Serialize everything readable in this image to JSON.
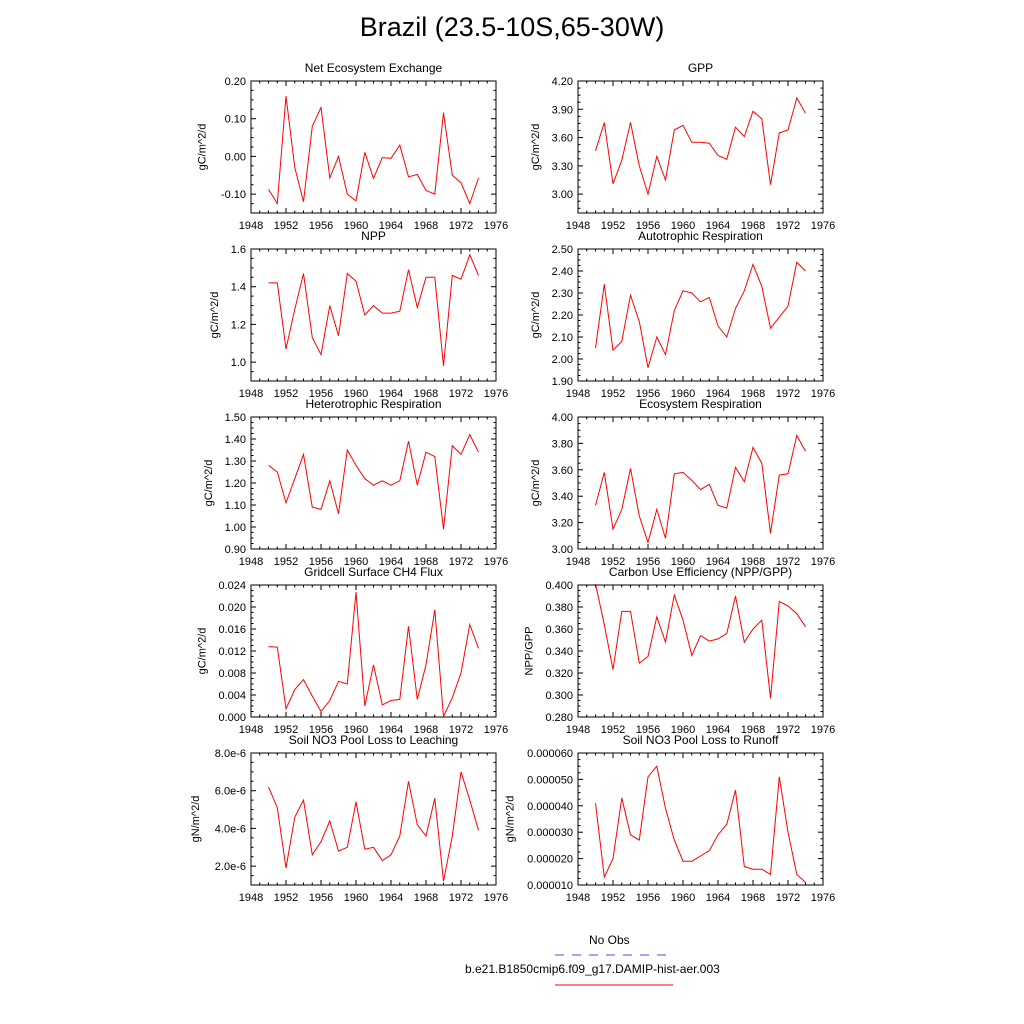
{
  "page": {
    "title": "Brazil (23.5-10S,65-30W)",
    "legend": [
      {
        "label": "No Obs",
        "color": "#4a4aff",
        "dash": true
      },
      {
        "label": "b.e21.B1850cmip6.f09_g17.DAMIP-hist-aer.003",
        "color": "#ff0000",
        "dash": false
      }
    ]
  },
  "chart_data": [
    {
      "type": "line",
      "title": "Net Ecosystem Exchange",
      "ylabel": "gC/m^2/d",
      "xlim": [
        1948,
        1976
      ],
      "xticks": [
        "1948",
        "1952",
        "1956",
        "1960",
        "1964",
        "1968",
        "1972",
        "1976"
      ],
      "ylim": [
        -0.15,
        0.2
      ],
      "yticks": [
        "-0.10",
        "0.00",
        "0.10",
        "0.20"
      ],
      "yticks_values": [
        -0.1,
        0.0,
        0.1,
        0.2
      ],
      "series": [
        {
          "color": "#ff0000",
          "x": [
            1950,
            1951,
            1952,
            1953,
            1954,
            1955,
            1956,
            1957,
            1958,
            1959,
            1960,
            1961,
            1962,
            1963,
            1964,
            1965,
            1966,
            1967,
            1968,
            1969,
            1970,
            1971,
            1972,
            1973,
            1974
          ],
          "y": [
            -0.087,
            -0.125,
            0.16,
            -0.03,
            -0.12,
            0.08,
            0.13,
            -0.057,
            0.0,
            -0.1,
            -0.118,
            0.011,
            -0.058,
            -0.003,
            -0.005,
            0.03,
            -0.054,
            -0.048,
            -0.09,
            -0.1,
            0.116,
            -0.05,
            -0.07,
            -0.125,
            -0.057
          ]
        }
      ]
    },
    {
      "type": "line",
      "title": "GPP",
      "ylabel": "gC/m^2/d",
      "xlim": [
        1948,
        1976
      ],
      "xticks": [
        "1948",
        "1952",
        "1956",
        "1960",
        "1964",
        "1968",
        "1972",
        "1976"
      ],
      "ylim": [
        2.8,
        4.2
      ],
      "yticks": [
        "3.00",
        "3.30",
        "3.60",
        "3.90",
        "4.20"
      ],
      "yticks_values": [
        3.0,
        3.3,
        3.6,
        3.9,
        4.2
      ],
      "series": [
        {
          "color": "#ff0000",
          "x": [
            1950,
            1951,
            1952,
            1953,
            1954,
            1955,
            1956,
            1957,
            1958,
            1959,
            1960,
            1961,
            1962,
            1963,
            1964,
            1965,
            1966,
            1967,
            1968,
            1969,
            1970,
            1971,
            1972,
            1973,
            1974
          ],
          "y": [
            3.46,
            3.76,
            3.11,
            3.36,
            3.76,
            3.3,
            3.0,
            3.4,
            3.15,
            3.68,
            3.73,
            3.55,
            3.55,
            3.54,
            3.41,
            3.37,
            3.71,
            3.61,
            3.88,
            3.8,
            3.1,
            3.65,
            3.68,
            4.02,
            3.86
          ]
        }
      ]
    },
    {
      "type": "line",
      "title": "NPP",
      "ylabel": "gC/m^2/d",
      "xlim": [
        1948,
        1976
      ],
      "xticks": [
        "1948",
        "1952",
        "1956",
        "1960",
        "1964",
        "1968",
        "1972",
        "1976"
      ],
      "ylim": [
        0.9,
        1.6
      ],
      "yticks": [
        "1.0",
        "1.2",
        "1.4",
        "1.6"
      ],
      "yticks_values": [
        1.0,
        1.2,
        1.4,
        1.6
      ],
      "series": [
        {
          "color": "#ff0000",
          "x": [
            1950,
            1951,
            1952,
            1953,
            1954,
            1955,
            1956,
            1957,
            1958,
            1959,
            1960,
            1961,
            1962,
            1963,
            1964,
            1965,
            1966,
            1967,
            1968,
            1969,
            1970,
            1971,
            1972,
            1973,
            1974
          ],
          "y": [
            1.42,
            1.42,
            1.07,
            1.28,
            1.47,
            1.13,
            1.04,
            1.3,
            1.14,
            1.47,
            1.43,
            1.25,
            1.3,
            1.26,
            1.26,
            1.27,
            1.49,
            1.29,
            1.45,
            1.45,
            0.98,
            1.46,
            1.44,
            1.57,
            1.46
          ]
        }
      ]
    },
    {
      "type": "line",
      "title": "Autotrophic Respiration",
      "ylabel": "gC/m^2/d",
      "xlim": [
        1948,
        1976
      ],
      "xticks": [
        "1948",
        "1952",
        "1956",
        "1960",
        "1964",
        "1968",
        "1972",
        "1976"
      ],
      "ylim": [
        1.9,
        2.5
      ],
      "yticks": [
        "1.90",
        "2.00",
        "2.10",
        "2.20",
        "2.30",
        "2.40",
        "2.50"
      ],
      "yticks_values": [
        1.9,
        2.0,
        2.1,
        2.2,
        2.3,
        2.4,
        2.5
      ],
      "series": [
        {
          "color": "#ff0000",
          "x": [
            1950,
            1951,
            1952,
            1953,
            1954,
            1955,
            1956,
            1957,
            1958,
            1959,
            1960,
            1961,
            1962,
            1963,
            1964,
            1965,
            1966,
            1967,
            1968,
            1969,
            1970,
            1971,
            1972,
            1973,
            1974
          ],
          "y": [
            2.05,
            2.34,
            2.04,
            2.08,
            2.29,
            2.17,
            1.96,
            2.1,
            2.02,
            2.22,
            2.31,
            2.3,
            2.26,
            2.28,
            2.15,
            2.1,
            2.23,
            2.31,
            2.43,
            2.33,
            2.14,
            2.19,
            2.24,
            2.44,
            2.4
          ]
        }
      ]
    },
    {
      "type": "line",
      "title": "Heterotrophic Respiration",
      "ylabel": "gC/m^2/d",
      "xlim": [
        1948,
        1976
      ],
      "xticks": [
        "1948",
        "1952",
        "1956",
        "1960",
        "1964",
        "1968",
        "1972",
        "1976"
      ],
      "ylim": [
        0.9,
        1.5
      ],
      "yticks": [
        "0.90",
        "1.00",
        "1.10",
        "1.20",
        "1.30",
        "1.40",
        "1.50"
      ],
      "yticks_values": [
        0.9,
        1.0,
        1.1,
        1.2,
        1.3,
        1.4,
        1.5
      ],
      "series": [
        {
          "color": "#ff0000",
          "x": [
            1950,
            1951,
            1952,
            1953,
            1954,
            1955,
            1956,
            1957,
            1958,
            1959,
            1960,
            1961,
            1962,
            1963,
            1964,
            1965,
            1966,
            1967,
            1968,
            1969,
            1970,
            1971,
            1972,
            1973,
            1974
          ],
          "y": [
            1.28,
            1.25,
            1.11,
            1.22,
            1.33,
            1.09,
            1.08,
            1.21,
            1.06,
            1.35,
            1.28,
            1.22,
            1.19,
            1.21,
            1.19,
            1.21,
            1.39,
            1.19,
            1.34,
            1.32,
            0.99,
            1.37,
            1.33,
            1.42,
            1.34
          ]
        }
      ]
    },
    {
      "type": "line",
      "title": "Ecosystem Respiration",
      "ylabel": "gC/m^2/d",
      "xlim": [
        1948,
        1976
      ],
      "xticks": [
        "1948",
        "1952",
        "1956",
        "1960",
        "1964",
        "1968",
        "1972",
        "1976"
      ],
      "ylim": [
        3.0,
        4.0
      ],
      "yticks": [
        "3.00",
        "3.20",
        "3.40",
        "3.60",
        "3.80",
        "4.00"
      ],
      "yticks_values": [
        3.0,
        3.2,
        3.4,
        3.6,
        3.8,
        4.0
      ],
      "series": [
        {
          "color": "#ff0000",
          "x": [
            1950,
            1951,
            1952,
            1953,
            1954,
            1955,
            1956,
            1957,
            1958,
            1959,
            1960,
            1961,
            1962,
            1963,
            1964,
            1965,
            1966,
            1967,
            1968,
            1969,
            1970,
            1971,
            1972,
            1973,
            1974
          ],
          "y": [
            3.33,
            3.58,
            3.15,
            3.3,
            3.61,
            3.25,
            3.05,
            3.3,
            3.08,
            3.57,
            3.58,
            3.52,
            3.45,
            3.49,
            3.33,
            3.31,
            3.62,
            3.51,
            3.77,
            3.65,
            3.12,
            3.56,
            3.57,
            3.86,
            3.74
          ]
        }
      ]
    },
    {
      "type": "line",
      "title": "Gridcell Surface CH4 Flux",
      "ylabel": "gC/m^2/d",
      "xlim": [
        1948,
        1976
      ],
      "xticks": [
        "1948",
        "1952",
        "1956",
        "1960",
        "1964",
        "1968",
        "1972",
        "1976"
      ],
      "ylim": [
        0.0,
        0.024
      ],
      "yticks": [
        "0.000",
        "0.004",
        "0.008",
        "0.012",
        "0.016",
        "0.020",
        "0.024"
      ],
      "yticks_values": [
        0.0,
        0.004,
        0.008,
        0.012,
        0.016,
        0.02,
        0.024
      ],
      "series": [
        {
          "color": "#ff0000",
          "x": [
            1950,
            1951,
            1952,
            1953,
            1954,
            1955,
            1956,
            1957,
            1958,
            1959,
            1960,
            1961,
            1962,
            1963,
            1964,
            1965,
            1966,
            1967,
            1968,
            1969,
            1970,
            1971,
            1972,
            1973,
            1974
          ],
          "y": [
            0.0128,
            0.0127,
            0.0015,
            0.005,
            0.0068,
            0.0038,
            0.001,
            0.003,
            0.0065,
            0.006,
            0.0227,
            0.002,
            0.0095,
            0.0022,
            0.003,
            0.0032,
            0.0165,
            0.0032,
            0.0095,
            0.0195,
            0.0001,
            0.0035,
            0.008,
            0.0168,
            0.0125
          ]
        }
      ]
    },
    {
      "type": "line",
      "title": "Carbon Use Efficiency (NPP/GPP)",
      "ylabel": "NPP/GPP",
      "xlim": [
        1948,
        1976
      ],
      "xticks": [
        "1948",
        "1952",
        "1956",
        "1960",
        "1964",
        "1968",
        "1972",
        "1976"
      ],
      "ylim": [
        0.28,
        0.4
      ],
      "yticks": [
        "0.280",
        "0.300",
        "0.320",
        "0.340",
        "0.360",
        "0.380",
        "0.400"
      ],
      "yticks_values": [
        0.28,
        0.3,
        0.32,
        0.34,
        0.36,
        0.38,
        0.4
      ],
      "series": [
        {
          "color": "#ff0000",
          "x": [
            1950,
            1951,
            1952,
            1953,
            1954,
            1955,
            1956,
            1957,
            1958,
            1959,
            1960,
            1961,
            1962,
            1963,
            1964,
            1965,
            1966,
            1967,
            1968,
            1969,
            1970,
            1971,
            1972,
            1973,
            1974
          ],
          "y": [
            0.401,
            0.364,
            0.323,
            0.376,
            0.376,
            0.329,
            0.335,
            0.371,
            0.348,
            0.391,
            0.368,
            0.336,
            0.354,
            0.349,
            0.351,
            0.356,
            0.39,
            0.348,
            0.36,
            0.368,
            0.297,
            0.385,
            0.381,
            0.374,
            0.362
          ]
        }
      ]
    },
    {
      "type": "line",
      "title": "Soil NO3 Pool Loss to Leaching",
      "ylabel": "gN/m^2/d",
      "xlim": [
        1948,
        1976
      ],
      "xticks": [
        "1948",
        "1952",
        "1956",
        "1960",
        "1964",
        "1968",
        "1972",
        "1976"
      ],
      "ylim": [
        1e-06,
        8e-06
      ],
      "yticks": [
        "2.0e-6",
        "4.0e-6",
        "6.0e-6",
        "8.0e-6"
      ],
      "yticks_values": [
        2e-06,
        4e-06,
        6e-06,
        8e-06
      ],
      "series": [
        {
          "color": "#ff0000",
          "x": [
            1950,
            1951,
            1952,
            1953,
            1954,
            1955,
            1956,
            1957,
            1958,
            1959,
            1960,
            1961,
            1962,
            1963,
            1964,
            1965,
            1966,
            1967,
            1968,
            1969,
            1970,
            1971,
            1972,
            1973,
            1974
          ],
          "y": [
            6.2e-06,
            5.1e-06,
            1.9e-06,
            4.6e-06,
            5.5e-06,
            2.6e-06,
            3.3e-06,
            4.4e-06,
            2.8e-06,
            3e-06,
            5.4e-06,
            2.9e-06,
            3e-06,
            2.3e-06,
            2.6e-06,
            3.6e-06,
            6.5e-06,
            4.2e-06,
            3.6e-06,
            5.6e-06,
            1.2e-06,
            3.6e-06,
            7e-06,
            5.5e-06,
            3.9e-06
          ]
        }
      ]
    },
    {
      "type": "line",
      "title": "Soil NO3 Pool Loss to Runoff",
      "ylabel": "gN/m^2/d",
      "xlim": [
        1948,
        1976
      ],
      "xticks": [
        "1948",
        "1952",
        "1956",
        "1960",
        "1964",
        "1968",
        "1972",
        "1976"
      ],
      "ylim": [
        1e-05,
        6e-05
      ],
      "yticks": [
        "0.000010",
        "0.000020",
        "0.000030",
        "0.000040",
        "0.000050",
        "0.000060"
      ],
      "yticks_values": [
        1e-05,
        2e-05,
        3e-05,
        4e-05,
        5e-05,
        6e-05
      ],
      "series": [
        {
          "color": "#ff0000",
          "x": [
            1950,
            1951,
            1952,
            1953,
            1954,
            1955,
            1956,
            1957,
            1958,
            1959,
            1960,
            1961,
            1962,
            1963,
            1964,
            1965,
            1966,
            1967,
            1968,
            1969,
            1970,
            1971,
            1972,
            1973,
            1974
          ],
          "y": [
            4.1e-05,
            1.3e-05,
            2e-05,
            4.3e-05,
            2.9e-05,
            2.7e-05,
            5.1e-05,
            5.5e-05,
            3.9e-05,
            2.7e-05,
            1.9e-05,
            1.9e-05,
            2.1e-05,
            2.3e-05,
            2.9e-05,
            3.3e-05,
            4.6e-05,
            1.7e-05,
            1.6e-05,
            1.6e-05,
            1.4e-05,
            5.1e-05,
            3e-05,
            1.4e-05,
            1.1e-05
          ]
        }
      ]
    }
  ]
}
